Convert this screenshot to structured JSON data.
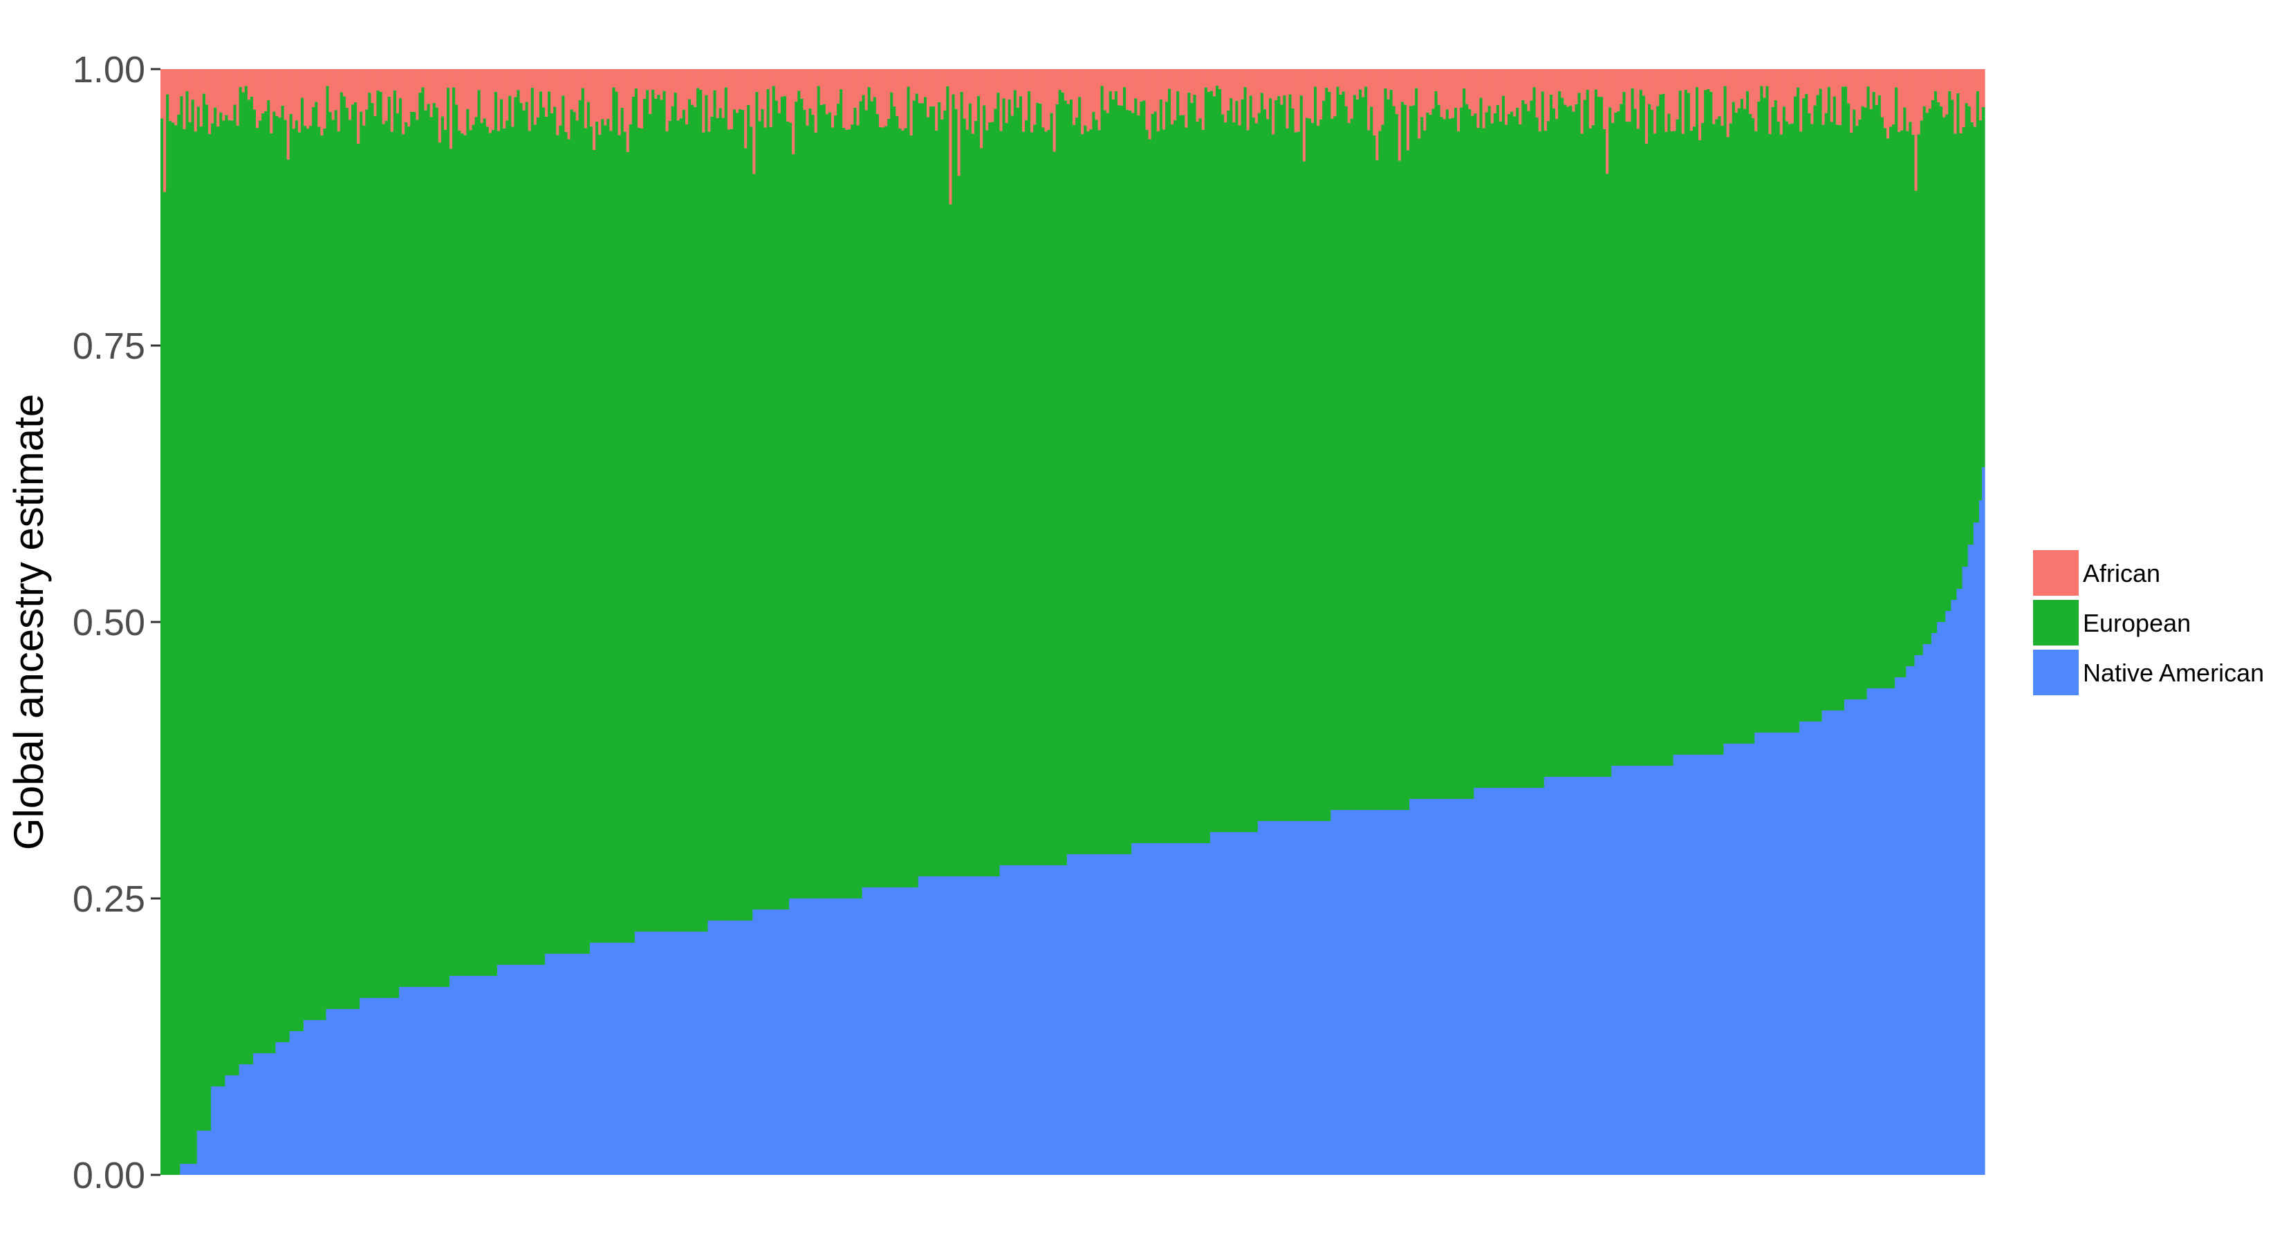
{
  "chart_data": {
    "type": "bar",
    "stacked": true,
    "title": "",
    "xlabel": "",
    "ylabel": "Global ancestry estimate",
    "ylim": [
      0,
      1
    ],
    "yticks": [
      "0.00",
      "0.25",
      "0.50",
      "0.75",
      "1.00"
    ],
    "grid": false,
    "legend": "right",
    "bar_count": 650,
    "series": [
      {
        "name": "African",
        "color": "#F8766D",
        "stack_position": "top"
      },
      {
        "name": "European",
        "color": "#1BB02E",
        "stack_position": "middle"
      },
      {
        "name": "Native American",
        "color": "#4F87FD",
        "stack_position": "bottom"
      }
    ],
    "native_american_steps": [
      [
        0.0,
        0.0
      ],
      [
        0.01,
        0.01
      ],
      [
        0.04,
        0.02
      ],
      [
        0.08,
        0.027
      ],
      [
        0.09,
        0.035
      ],
      [
        0.1,
        0.043
      ],
      [
        0.11,
        0.05
      ],
      [
        0.12,
        0.062
      ],
      [
        0.13,
        0.07
      ],
      [
        0.14,
        0.078
      ],
      [
        0.15,
        0.09
      ],
      [
        0.16,
        0.109
      ],
      [
        0.17,
        0.13
      ],
      [
        0.18,
        0.158
      ],
      [
        0.19,
        0.184
      ],
      [
        0.2,
        0.21
      ],
      [
        0.21,
        0.235
      ],
      [
        0.22,
        0.26
      ],
      [
        0.23,
        0.3
      ],
      [
        0.24,
        0.325
      ],
      [
        0.25,
        0.345
      ],
      [
        0.26,
        0.385
      ],
      [
        0.27,
        0.416
      ],
      [
        0.28,
        0.46
      ],
      [
        0.29,
        0.497
      ],
      [
        0.3,
        0.533
      ],
      [
        0.31,
        0.575
      ],
      [
        0.32,
        0.601
      ],
      [
        0.33,
        0.642
      ],
      [
        0.34,
        0.685
      ],
      [
        0.35,
        0.72
      ],
      [
        0.36,
        0.759
      ],
      [
        0.37,
        0.796
      ],
      [
        0.38,
        0.829
      ],
      [
        0.39,
        0.858
      ],
      [
        0.4,
        0.874
      ],
      [
        0.41,
        0.899
      ],
      [
        0.42,
        0.912
      ],
      [
        0.43,
        0.924
      ],
      [
        0.44,
        0.936
      ],
      [
        0.45,
        0.951
      ],
      [
        0.46,
        0.958
      ],
      [
        0.47,
        0.963
      ],
      [
        0.48,
        0.967
      ],
      [
        0.49,
        0.971
      ],
      [
        0.5,
        0.975
      ],
      [
        0.51,
        0.979
      ],
      [
        0.52,
        0.982
      ],
      [
        0.53,
        0.985
      ],
      [
        0.55,
        0.988
      ],
      [
        0.57,
        0.991
      ],
      [
        0.59,
        0.994
      ],
      [
        0.61,
        0.997
      ],
      [
        0.64,
        1.0
      ]
    ],
    "african_range": [
      0.0,
      0.15
    ]
  }
}
